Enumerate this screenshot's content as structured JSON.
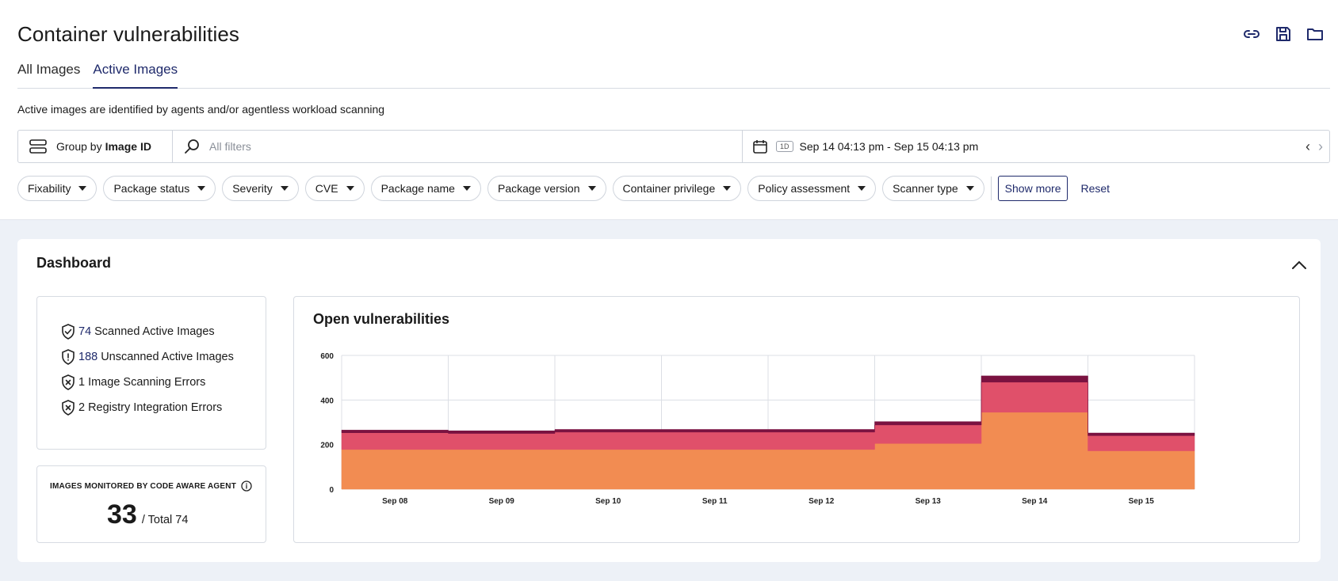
{
  "header": {
    "title": "Container vulnerabilities"
  },
  "tabs": [
    {
      "label": "All Images",
      "active": false
    },
    {
      "label": "Active Images",
      "active": true
    }
  ],
  "subtitle": "Active images are identified by agents and/or agentless workload scanning",
  "toolbar": {
    "group_by_prefix": "Group by",
    "group_by_value": "Image ID",
    "search_placeholder": "All filters",
    "range_badge": "1D",
    "date_range": "Sep 14 04:13 pm - Sep 15 04:13 pm"
  },
  "filters": [
    "Fixability",
    "Package status",
    "Severity",
    "CVE",
    "Package name",
    "Package version",
    "Container privilege",
    "Policy assessment",
    "Scanner type"
  ],
  "filter_actions": {
    "show_more": "Show more",
    "reset": "Reset"
  },
  "dashboard": {
    "title": "Dashboard",
    "scan_stats": [
      {
        "num": "74",
        "label": "Scanned Active Images",
        "icon": "shield-check-icon",
        "link": true
      },
      {
        "num": "188",
        "label": "Unscanned Active Images",
        "icon": "shield-alert-icon",
        "link": true
      },
      {
        "num": "1",
        "label": "Image Scanning Errors",
        "icon": "shield-x-icon",
        "link": false
      },
      {
        "num": "2",
        "label": "Registry Integration Errors",
        "icon": "shield-x-icon",
        "link": false
      }
    ],
    "agent": {
      "label": "IMAGES MONITORED BY CODE AWARE AGENT",
      "value": "33",
      "total": "/ Total 74"
    },
    "chart_title": "Open vulnerabilities"
  },
  "colors": {
    "accent": "#1f2a6b",
    "low": "#f28c52",
    "mid": "#e0506a",
    "high": "#7a1240"
  },
  "chart_data": {
    "type": "area",
    "title": "Open vulnerabilities",
    "stacked": true,
    "step": true,
    "categories": [
      "Sep 08",
      "Sep 09",
      "Sep 10",
      "Sep 11",
      "Sep 12",
      "Sep 13",
      "Sep 14",
      "Sep 15"
    ],
    "ylim": [
      0,
      600
    ],
    "yticks": [
      0,
      200,
      400,
      600
    ],
    "series": [
      {
        "color": "#f28c52",
        "values": [
          178,
          178,
          178,
          178,
          178,
          205,
          345,
          172
        ]
      },
      {
        "color": "#e0506a",
        "values": [
          75,
          72,
          78,
          78,
          78,
          83,
          135,
          68
        ]
      },
      {
        "color": "#7a1240",
        "values": [
          12,
          12,
          12,
          12,
          12,
          15,
          28,
          12
        ]
      }
    ],
    "grid": true
  }
}
